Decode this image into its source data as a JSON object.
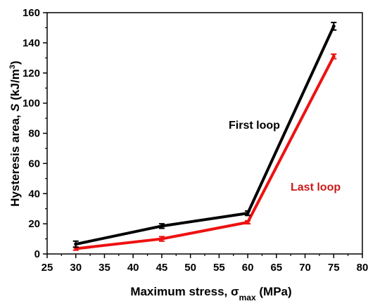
{
  "chart_data": {
    "type": "line",
    "xlabel": {
      "main": "Maximum stress, ",
      "sym": "σ",
      "sub": "max",
      "unit": " (MPa)"
    },
    "ylabel": {
      "main": "Hysteresis area, ",
      "sym": "S",
      "unit": " (kJ/m",
      "sup": "3",
      "close": ")"
    },
    "xlim": [
      25,
      80
    ],
    "ylim": [
      0,
      160
    ],
    "xticks": [
      25,
      30,
      35,
      40,
      45,
      50,
      55,
      60,
      65,
      70,
      75,
      80
    ],
    "yticks": [
      0,
      20,
      40,
      60,
      80,
      100,
      120,
      140,
      160
    ],
    "grid": false,
    "series": [
      {
        "name": "First loop",
        "color": "#000000",
        "x": [
          30,
          45,
          60,
          75
        ],
        "y": [
          6.5,
          18.5,
          27,
          151
        ],
        "err": [
          2,
          1.5,
          1.5,
          2.5
        ]
      },
      {
        "name": "Last loop",
        "color": "#ee1111",
        "x": [
          30,
          45,
          60,
          75
        ],
        "y": [
          3.5,
          10,
          21,
          131
        ],
        "err": [
          1,
          1.5,
          1,
          1.5
        ]
      }
    ]
  }
}
